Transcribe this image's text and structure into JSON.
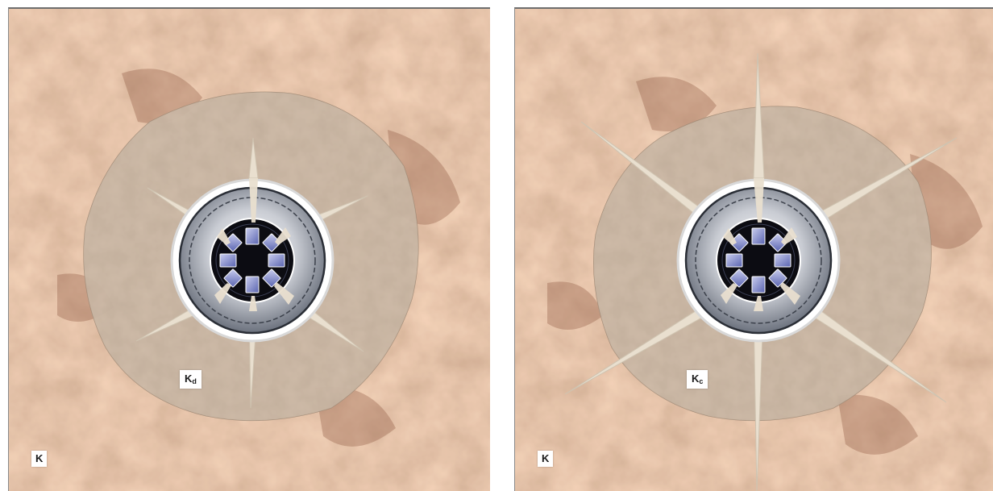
{
  "panels": [
    {
      "id": "left",
      "crack_length": "short",
      "zone_label_main": "K",
      "zone_label_sub": "d",
      "rock_label": "K"
    },
    {
      "id": "right",
      "crack_length": "long",
      "zone_label_main": "K",
      "zone_label_sub": "c",
      "rock_label": "K"
    }
  ],
  "colors": {
    "rock_base": "#d79a72",
    "rock_dark": "#a8654a",
    "rock_light": "#eec7a8",
    "damage_zone": "#b9a28c",
    "crack": "#e9dfcf",
    "ring_white": "#f4f4f4",
    "ring_dark": "#2a2e36",
    "core": "#0c0c12",
    "slot": "#7f88c8"
  }
}
